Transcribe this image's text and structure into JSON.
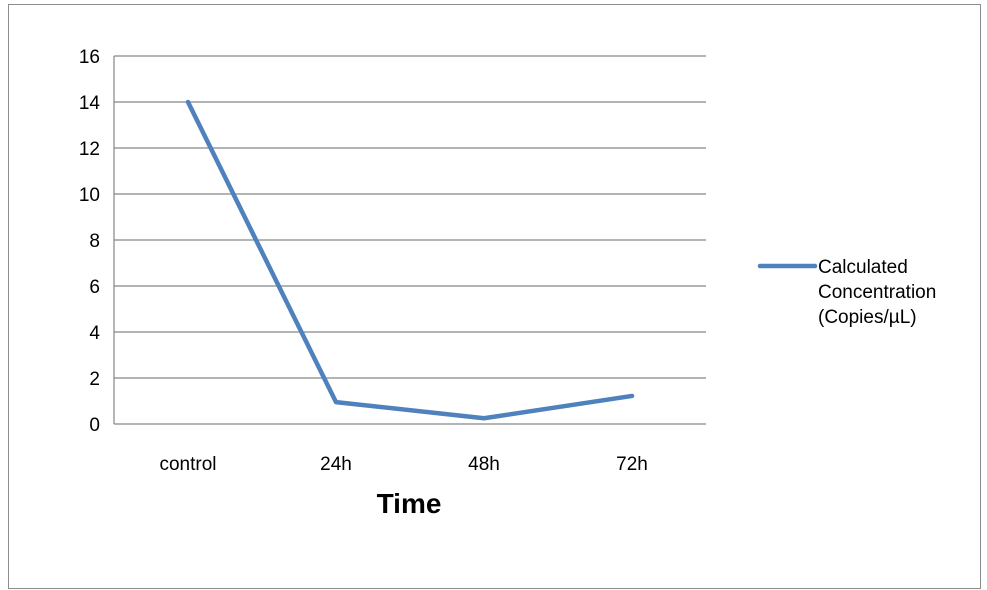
{
  "chart_data": {
    "type": "line",
    "categories": [
      "control",
      "24h",
      "48h",
      "72h"
    ],
    "series": [
      {
        "name": "Calculated Concentration (Copies/µL)",
        "name_lines": [
          "Calculated",
          "Concentration",
          "(Copies/µL)"
        ],
        "values": [
          14.0,
          0.95,
          0.25,
          1.22
        ],
        "color": "#4f81bd"
      }
    ],
    "title": "",
    "xlabel": "Time",
    "ylabel": "",
    "ylim": [
      0,
      16
    ],
    "yticks": [
      "0",
      "2",
      "4",
      "6",
      "8",
      "10",
      "12",
      "14",
      "16"
    ],
    "grid": true,
    "legend_position": "right"
  }
}
